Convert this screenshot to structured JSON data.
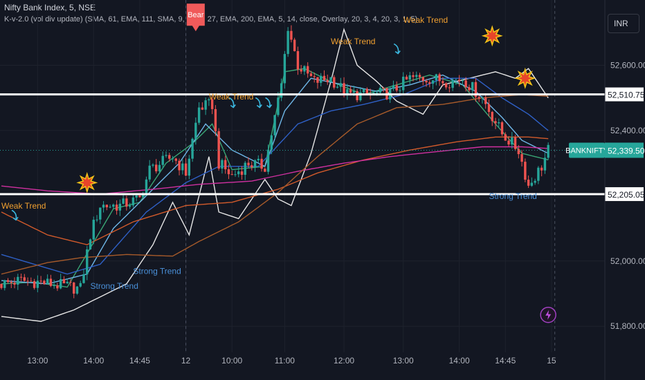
{
  "header": {
    "symbol_line": "Nifty Bank Index, 5, NSE",
    "indicator_line": "K-v-2.0 (vol div update) (SMA, 61, EMA, 111, SMA, 9, EMA, 27, EMA, 200, EMA, 5, 14, close, Overlay, 20, 3, 4, 20, 3, 1, 5)"
  },
  "currency_button": "INR",
  "colors": {
    "background": "#131722",
    "up": "#26a69a",
    "down": "#ef5350",
    "grid": "#1e222d",
    "axis_text": "#b2b5be",
    "signal_label_orange": "#f0a030",
    "signal_label_blue": "#4a90d9"
  },
  "chart_data": {
    "type": "candlestick",
    "title": "Nifty Bank Index, 5, NSE",
    "ylim": [
      51720,
      52800
    ],
    "yticks": [
      52600,
      52400,
      52000,
      51800
    ],
    "ytick_labels": [
      "52,600.00",
      "52,400.00",
      "52,000.00",
      "51,800.00"
    ],
    "xtick_labels": [
      "13:00",
      "14:00",
      "14:45",
      "12",
      "10:00",
      "11:00",
      "12:00",
      "13:00",
      "14:00",
      "14:45",
      "15"
    ],
    "xtick_index": [
      11,
      28,
      42,
      56,
      70,
      86,
      104,
      122,
      139,
      153,
      167
    ],
    "session_breaks": [
      56,
      168
    ],
    "price_levels": [
      {
        "label": "52,510.75",
        "value": 52510.75
      },
      {
        "label": "52,205.05",
        "value": 52205.05
      }
    ],
    "last_price": {
      "symbol": "BANKNIFTY",
      "label": "52,339.50",
      "value": 52339.5
    },
    "dotted_level": 52339.5,
    "anchors": [
      [
        0,
        51930
      ],
      [
        6,
        51940
      ],
      [
        12,
        51935
      ],
      [
        18,
        51925
      ],
      [
        24,
        51915
      ],
      [
        27,
        52080
      ],
      [
        30,
        52170
      ],
      [
        36,
        52170
      ],
      [
        42,
        52190
      ],
      [
        45,
        52280
      ],
      [
        52,
        52320
      ],
      [
        56,
        52270
      ],
      [
        60,
        52470
      ],
      [
        64,
        52480
      ],
      [
        66,
        52300
      ],
      [
        70,
        52260
      ],
      [
        75,
        52300
      ],
      [
        80,
        52290
      ],
      [
        85,
        52540
      ],
      [
        87,
        52720
      ],
      [
        90,
        52600
      ],
      [
        95,
        52550
      ],
      [
        100,
        52560
      ],
      [
        105,
        52510
      ],
      [
        112,
        52510
      ],
      [
        118,
        52515
      ],
      [
        124,
        52560
      ],
      [
        130,
        52560
      ],
      [
        136,
        52550
      ],
      [
        140,
        52560
      ],
      [
        146,
        52500
      ],
      [
        152,
        52390
      ],
      [
        157,
        52340
      ],
      [
        160,
        52230
      ],
      [
        164,
        52290
      ],
      [
        166,
        52340
      ]
    ],
    "overlays": [
      {
        "name": "Bollinger-style envelope",
        "color": "#e6e6e6",
        "points": [
          [
            0,
            51830
          ],
          [
            12,
            51815
          ],
          [
            22,
            51850
          ],
          [
            30,
            51890
          ],
          [
            38,
            51930
          ],
          [
            46,
            52050
          ],
          [
            52,
            52180
          ],
          [
            57,
            52080
          ],
          [
            63,
            52320
          ],
          [
            66,
            52150
          ],
          [
            72,
            52130
          ],
          [
            80,
            52250
          ],
          [
            84,
            52190
          ],
          [
            88,
            52170
          ],
          [
            94,
            52330
          ],
          [
            100,
            52550
          ],
          [
            104,
            52710
          ],
          [
            108,
            52600
          ],
          [
            114,
            52550
          ],
          [
            120,
            52490
          ],
          [
            128,
            52450
          ],
          [
            134,
            52540
          ],
          [
            142,
            52560
          ],
          [
            150,
            52580
          ],
          [
            156,
            52560
          ],
          [
            160,
            52590
          ],
          [
            166,
            52500
          ]
        ]
      },
      {
        "name": "EMA 9",
        "color": "#3aa776",
        "points": [
          [
            0,
            51930
          ],
          [
            10,
            51935
          ],
          [
            20,
            51920
          ],
          [
            27,
            52040
          ],
          [
            34,
            52160
          ],
          [
            42,
            52180
          ],
          [
            50,
            52300
          ],
          [
            58,
            52360
          ],
          [
            64,
            52420
          ],
          [
            70,
            52280
          ],
          [
            80,
            52290
          ],
          [
            86,
            52580
          ],
          [
            92,
            52590
          ],
          [
            100,
            52550
          ],
          [
            110,
            52510
          ],
          [
            120,
            52540
          ],
          [
            130,
            52570
          ],
          [
            140,
            52540
          ],
          [
            150,
            52420
          ],
          [
            158,
            52330
          ],
          [
            166,
            52310
          ]
        ]
      },
      {
        "name": "SMA 20",
        "color": "#6fb7e8",
        "points": [
          [
            0,
            51940
          ],
          [
            14,
            51930
          ],
          [
            26,
            51960
          ],
          [
            34,
            52100
          ],
          [
            44,
            52200
          ],
          [
            54,
            52300
          ],
          [
            62,
            52420
          ],
          [
            70,
            52340
          ],
          [
            80,
            52290
          ],
          [
            86,
            52460
          ],
          [
            94,
            52560
          ],
          [
            104,
            52540
          ],
          [
            114,
            52520
          ],
          [
            124,
            52540
          ],
          [
            134,
            52570
          ],
          [
            144,
            52520
          ],
          [
            152,
            52440
          ],
          [
            158,
            52370
          ],
          [
            166,
            52330
          ]
        ]
      },
      {
        "name": "EMA 27",
        "color": "#2f60c6",
        "points": [
          [
            0,
            52020
          ],
          [
            20,
            51960
          ],
          [
            30,
            51990
          ],
          [
            44,
            52150
          ],
          [
            56,
            52240
          ],
          [
            66,
            52290
          ],
          [
            78,
            52290
          ],
          [
            90,
            52420
          ],
          [
            100,
            52460
          ],
          [
            110,
            52480
          ],
          [
            122,
            52510
          ],
          [
            134,
            52560
          ],
          [
            144,
            52560
          ],
          [
            152,
            52500
          ],
          [
            160,
            52450
          ],
          [
            166,
            52400
          ]
        ]
      },
      {
        "name": "EMA 111",
        "color": "#d15a2b",
        "points": [
          [
            0,
            52150
          ],
          [
            14,
            52080
          ],
          [
            26,
            52050
          ],
          [
            40,
            52120
          ],
          [
            56,
            52170
          ],
          [
            70,
            52180
          ],
          [
            84,
            52220
          ],
          [
            96,
            52270
          ],
          [
            110,
            52310
          ],
          [
            124,
            52340
          ],
          [
            138,
            52365
          ],
          [
            150,
            52380
          ],
          [
            160,
            52380
          ],
          [
            166,
            52375
          ]
        ]
      },
      {
        "name": "EMA 200",
        "color": "#d030a0",
        "points": [
          [
            0,
            52230
          ],
          [
            14,
            52215
          ],
          [
            30,
            52205
          ],
          [
            46,
            52220
          ],
          [
            60,
            52235
          ],
          [
            76,
            52245
          ],
          [
            90,
            52275
          ],
          [
            104,
            52300
          ],
          [
            118,
            52320
          ],
          [
            132,
            52335
          ],
          [
            146,
            52350
          ],
          [
            158,
            52350
          ],
          [
            166,
            52345
          ]
        ]
      },
      {
        "name": "SMA 61",
        "color": "#a65a2a",
        "points": [
          [
            0,
            51960
          ],
          [
            14,
            51995
          ],
          [
            24,
            52010
          ],
          [
            38,
            52020
          ],
          [
            52,
            52015
          ],
          [
            60,
            52060
          ],
          [
            72,
            52120
          ],
          [
            84,
            52210
          ],
          [
            96,
            52320
          ],
          [
            108,
            52420
          ],
          [
            120,
            52470
          ],
          [
            134,
            52480
          ],
          [
            146,
            52500
          ],
          [
            158,
            52510
          ],
          [
            166,
            52505
          ]
        ]
      }
    ],
    "signals": [
      {
        "type": "bear-flag",
        "label": "Bear",
        "index": 59,
        "price": 52700
      },
      {
        "type": "text",
        "label": "Weak Trend",
        "index": 63,
        "price": 52495,
        "color": "orange"
      },
      {
        "type": "text",
        "label": "Weak Trend",
        "index": 100,
        "price": 52665,
        "color": "orange"
      },
      {
        "type": "text",
        "label": "Weak Trend",
        "index": 122,
        "price": 52730,
        "color": "orange"
      },
      {
        "type": "text",
        "label": "Weak Trend",
        "index": 0,
        "price": 52160,
        "color": "orange"
      },
      {
        "type": "text",
        "label": "Strong Trend",
        "index": 27,
        "price": 51915,
        "color": "blue"
      },
      {
        "type": "text",
        "label": "Strong Trend",
        "index": 40,
        "price": 51960,
        "color": "blue"
      },
      {
        "type": "text",
        "label": "Strong Trend",
        "index": 148,
        "price": 52190,
        "color": "blue"
      },
      {
        "type": "explosion",
        "index": 26,
        "price": 52240
      },
      {
        "type": "explosion",
        "index": 149,
        "price": 52690
      },
      {
        "type": "explosion",
        "index": 159,
        "price": 52560
      },
      {
        "type": "arrow",
        "index": 88,
        "price": 52810
      },
      {
        "type": "arrow",
        "index": 70,
        "price": 52475
      },
      {
        "type": "arrow",
        "index": 78,
        "price": 52475
      },
      {
        "type": "arrow",
        "index": 81,
        "price": 52475
      },
      {
        "type": "arrow",
        "index": 120,
        "price": 52640
      },
      {
        "type": "arrow",
        "index": 4,
        "price": 52130
      },
      {
        "type": "bolt",
        "index": 166,
        "price": 51835
      }
    ]
  }
}
